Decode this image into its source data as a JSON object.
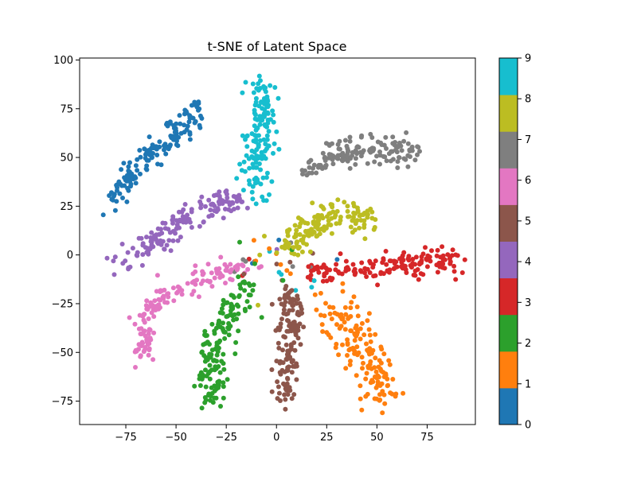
{
  "chart_data": {
    "type": "scatter",
    "title": "t-SNE of Latent Space",
    "xlabel": "",
    "ylabel": "",
    "xlim": [
      -98,
      99
    ],
    "ylim": [
      -87,
      101
    ],
    "x_ticks": [
      -75,
      -50,
      -25,
      0,
      25,
      50,
      75
    ],
    "x_tick_labels": [
      "−75",
      "−50",
      "−25",
      "0",
      "25",
      "50",
      "75"
    ],
    "y_ticks": [
      -75,
      -50,
      -25,
      0,
      25,
      50,
      75,
      100
    ],
    "y_tick_labels": [
      "−75",
      "−50",
      "−25",
      "0",
      "25",
      "50",
      "75",
      "100"
    ],
    "grid": false,
    "colorbar": {
      "min": 0,
      "max": 9,
      "ticks": [
        "0",
        "1",
        "2",
        "3",
        "4",
        "5",
        "6",
        "7",
        "8",
        "9"
      ],
      "colormap": "tab10"
    },
    "clusters": [
      {
        "label": "0",
        "color": "#1f77b4",
        "path": [
          [
            -82,
            29
          ],
          [
            -75,
            40
          ],
          [
            -62,
            52
          ],
          [
            -50,
            62
          ],
          [
            -38,
            75
          ]
        ],
        "spread": 3.5,
        "count": 150
      },
      {
        "label": "1",
        "color": "#ff7f0e",
        "path": [
          [
            28,
            -25
          ],
          [
            35,
            -35
          ],
          [
            42,
            -47
          ],
          [
            50,
            -60
          ],
          [
            53,
            -73
          ]
        ],
        "spread": 5,
        "count": 150
      },
      {
        "label": "2",
        "color": "#2ca02c",
        "path": [
          [
            -13,
            -15
          ],
          [
            -24,
            -30
          ],
          [
            -30,
            -45
          ],
          [
            -33,
            -60
          ],
          [
            -33,
            -75
          ]
        ],
        "spread": 3.5,
        "count": 150
      },
      {
        "label": "3",
        "color": "#d62728",
        "path": [
          [
            15,
            -10
          ],
          [
            35,
            -7
          ],
          [
            55,
            -5
          ],
          [
            72,
            -3
          ],
          [
            88,
            -2
          ]
        ],
        "spread": 3.5,
        "count": 150
      },
      {
        "label": "4",
        "color": "#9467bd",
        "path": [
          [
            -80,
            -5
          ],
          [
            -62,
            5
          ],
          [
            -48,
            17
          ],
          [
            -35,
            24
          ],
          [
            -20,
            28
          ]
        ],
        "spread": 3.5,
        "count": 150
      },
      {
        "label": "5",
        "color": "#8c564b",
        "path": [
          [
            6,
            -18
          ],
          [
            8,
            -30
          ],
          [
            6,
            -45
          ],
          [
            4,
            -60
          ],
          [
            4,
            -75
          ]
        ],
        "spread": 3,
        "count": 140
      },
      {
        "label": "6",
        "color": "#e377c2",
        "path": [
          [
            -15,
            -5
          ],
          [
            -35,
            -12
          ],
          [
            -55,
            -20
          ],
          [
            -65,
            -32
          ],
          [
            -67,
            -52
          ]
        ],
        "spread": 3,
        "count": 150
      },
      {
        "label": "7",
        "color": "#7f7f7f",
        "path": [
          [
            15,
            42
          ],
          [
            30,
            50
          ],
          [
            45,
            55
          ],
          [
            58,
            53
          ],
          [
            70,
            52
          ]
        ],
        "spread": 3.5,
        "count": 150
      },
      {
        "label": "8",
        "color": "#bcbd22",
        "path": [
          [
            4,
            3
          ],
          [
            15,
            12
          ],
          [
            25,
            18
          ],
          [
            35,
            20
          ],
          [
            45,
            18
          ]
        ],
        "spread": 4,
        "count": 150
      },
      {
        "label": "9",
        "color": "#17becf",
        "path": [
          [
            -8,
            90
          ],
          [
            -5,
            75
          ],
          [
            -8,
            60
          ],
          [
            -12,
            48
          ],
          [
            -8,
            30
          ]
        ],
        "spread": 3.5,
        "count": 150
      }
    ]
  }
}
